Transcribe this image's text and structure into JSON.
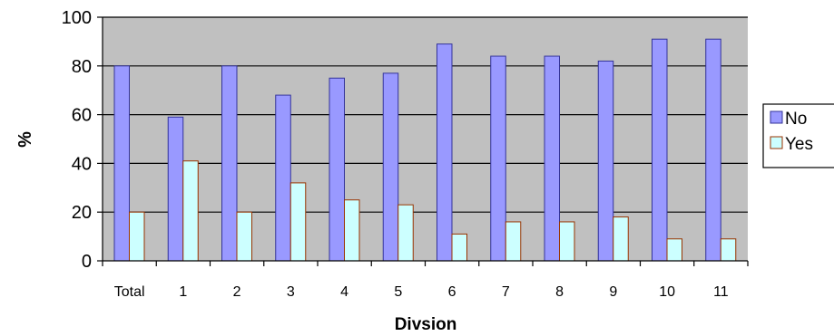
{
  "chart_data": {
    "type": "bar",
    "xlabel": "Divsion",
    "ylabel": "%",
    "categories": [
      "Total",
      "1",
      "2",
      "3",
      "4",
      "5",
      "6",
      "7",
      "8",
      "9",
      "10",
      "11"
    ],
    "series": [
      {
        "name": "No",
        "color": "#9999ff",
        "values": [
          80,
          59,
          80,
          68,
          75,
          77,
          89,
          84,
          84,
          82,
          91,
          91
        ]
      },
      {
        "name": "Yes",
        "color": "#ccffff",
        "values": [
          20,
          41,
          20,
          32,
          25,
          23,
          11,
          16,
          16,
          18,
          9,
          9
        ]
      }
    ],
    "ylim": [
      0,
      100
    ],
    "yticks": [
      0,
      20,
      40,
      60,
      80,
      100
    ],
    "grid": true,
    "legend": "right",
    "plot_background": "#c0c0c0",
    "bar_edge_colors": {
      "No": "#333399",
      "Yes": "#993300"
    }
  }
}
